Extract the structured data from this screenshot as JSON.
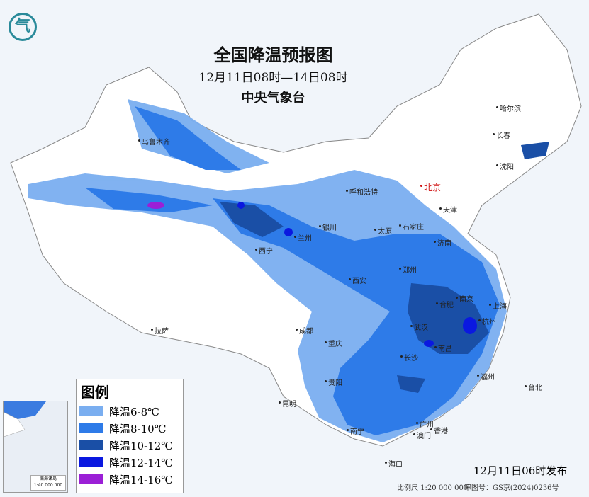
{
  "title": "全国降温预报图",
  "period": "12月11日08时—14日08时",
  "agency": "中央气象台",
  "logo_icon": "cma-logo-icon",
  "legend": {
    "title": "图例",
    "items": [
      {
        "label": "降温6-8℃",
        "color": "#7aaef0"
      },
      {
        "label": "降温8-10℃",
        "color": "#2e7be8"
      },
      {
        "label": "降温10-12℃",
        "color": "#1a4fa6"
      },
      {
        "label": "降温12-14℃",
        "color": "#0a18e0"
      },
      {
        "label": "降温14-16℃",
        "color": "#9b1fd6"
      }
    ]
  },
  "cities": [
    {
      "name": "乌鲁木齐"
    },
    {
      "name": "哈尔滨"
    },
    {
      "name": "长春"
    },
    {
      "name": "沈阳"
    },
    {
      "name": "北京",
      "capital": true
    },
    {
      "name": "天津"
    },
    {
      "name": "呼和浩特"
    },
    {
      "name": "石家庄"
    },
    {
      "name": "太原"
    },
    {
      "name": "银川"
    },
    {
      "name": "济南"
    },
    {
      "name": "西宁"
    },
    {
      "name": "兰州"
    },
    {
      "name": "郑州"
    },
    {
      "name": "西安"
    },
    {
      "name": "南京"
    },
    {
      "name": "合肥"
    },
    {
      "name": "上海"
    },
    {
      "name": "杭州"
    },
    {
      "name": "武汉"
    },
    {
      "name": "成都"
    },
    {
      "name": "重庆"
    },
    {
      "name": "南昌"
    },
    {
      "name": "长沙"
    },
    {
      "name": "拉萨"
    },
    {
      "name": "贵阳"
    },
    {
      "name": "福州"
    },
    {
      "name": "台北"
    },
    {
      "name": "昆明"
    },
    {
      "name": "南宁"
    },
    {
      "name": "广州"
    },
    {
      "name": "澳门"
    },
    {
      "name": "香港"
    },
    {
      "name": "海口"
    }
  ],
  "inset": {
    "label": "南海诸岛",
    "scale": "1:40 000 000"
  },
  "issued": "12月11日06时发布",
  "scale": "比例尺 1:20 000 000",
  "approval": "审图号：GS京(2024)0236号"
}
